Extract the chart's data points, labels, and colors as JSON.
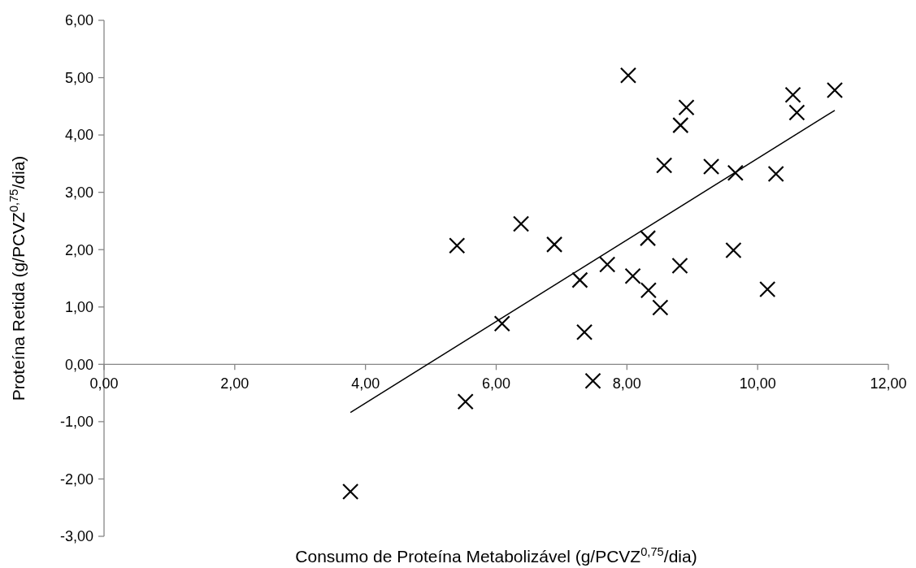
{
  "chart_data": {
    "type": "scatter",
    "xlabel": "Consumo de Proteína Metabolizável (g/PCVZ$^{0,75}$/dia)",
    "ylabel": "Proteína Retida (g/PCVZ$^{0,75}$/dia)",
    "xlim": [
      0,
      12
    ],
    "ylim": [
      -3,
      6
    ],
    "xticks": [
      {
        "value": 0,
        "label": "0,00"
      },
      {
        "value": 2,
        "label": "2,00"
      },
      {
        "value": 4,
        "label": "4,00"
      },
      {
        "value": 6,
        "label": "6,00"
      },
      {
        "value": 8,
        "label": "8,00"
      },
      {
        "value": 10,
        "label": "10,00"
      },
      {
        "value": 12,
        "label": "12,00"
      }
    ],
    "yticks": [
      {
        "value": -3,
        "label": "-3,00"
      },
      {
        "value": -2,
        "label": "-2,00"
      },
      {
        "value": -1,
        "label": "-1,00"
      },
      {
        "value": 0,
        "label": "0,00"
      },
      {
        "value": 1,
        "label": "1,00"
      },
      {
        "value": 2,
        "label": "2,00"
      },
      {
        "value": 3,
        "label": "3,00"
      },
      {
        "value": 4,
        "label": "4,00"
      },
      {
        "value": 5,
        "label": "5,00"
      },
      {
        "value": 6,
        "label": "6,00"
      }
    ],
    "grid": false,
    "marker": "cross",
    "series": [
      {
        "color": "#000000",
        "x": [
          3.77,
          5.53,
          5.4,
          6.38,
          6.89,
          6.09,
          7.28,
          7.35,
          7.48,
          7.7,
          8.02,
          8.91,
          8.82,
          10.54,
          10.6,
          11.18,
          9.29,
          9.66,
          10.28,
          8.57,
          8.32,
          9.63,
          8.09,
          8.33,
          8.81,
          8.51,
          10.15
        ],
        "values": [
          -2.22,
          -0.65,
          2.07,
          2.45,
          2.09,
          0.71,
          1.47,
          0.56,
          -0.29,
          1.74,
          5.04,
          4.48,
          4.17,
          4.7,
          4.39,
          4.78,
          3.45,
          3.34,
          3.32,
          3.47,
          2.2,
          1.99,
          1.54,
          1.29,
          1.72,
          0.99,
          1.31
        ]
      },
      {
        "type": "line",
        "color": "#000000",
        "marker": "none",
        "line_style": "solid",
        "x": [
          3.77,
          11.18
        ],
        "values": [
          -0.84,
          4.43
        ]
      }
    ]
  }
}
